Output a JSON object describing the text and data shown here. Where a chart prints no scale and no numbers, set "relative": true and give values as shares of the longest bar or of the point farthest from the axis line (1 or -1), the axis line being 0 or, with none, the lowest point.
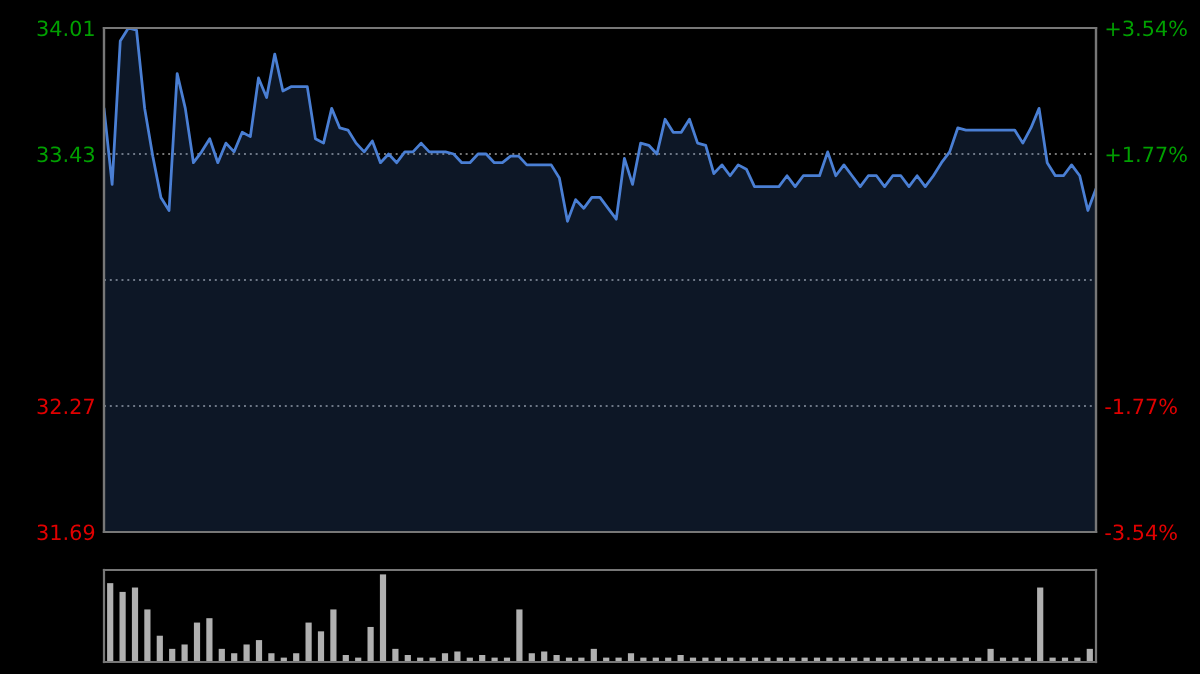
{
  "chart_data": [
    {
      "type": "area",
      "categories": [
        null,
        null,
        null,
        null,
        null,
        null,
        null,
        null,
        null,
        null,
        null,
        null,
        null,
        null,
        null,
        null,
        null,
        null,
        null,
        null,
        null,
        null,
        null,
        null,
        null,
        null,
        null,
        null,
        null,
        null,
        null,
        null,
        null,
        null,
        null,
        null,
        null,
        null,
        null,
        null,
        null,
        null,
        null,
        null,
        null,
        null,
        null,
        null,
        null,
        null,
        null,
        null,
        null,
        null,
        null,
        null,
        null,
        null,
        null,
        null,
        null,
        null,
        null,
        null,
        null,
        null,
        null,
        null,
        null,
        null,
        null,
        null,
        null,
        null,
        null,
        null,
        null,
        null,
        null,
        null,
        null,
        null,
        null,
        null,
        null,
        null,
        null,
        null,
        null,
        null,
        null,
        null,
        null,
        null,
        null,
        null,
        null,
        null,
        null,
        null,
        null,
        null,
        null,
        null,
        null,
        null,
        null,
        null,
        null,
        null,
        null,
        null,
        null,
        null,
        null,
        null,
        null,
        null,
        null,
        null,
        null,
        null,
        null
      ],
      "series": [
        {
          "color": "#4a7fd4",
          "values": [
            33.64,
            33.29,
            33.95,
            34.01,
            34.0,
            33.64,
            33.42,
            33.23,
            33.17,
            33.8,
            33.64,
            33.39,
            33.44,
            33.5,
            33.39,
            33.48,
            33.44,
            33.53,
            33.51,
            33.78,
            33.69,
            33.89,
            33.72,
            33.74,
            33.74,
            33.74,
            33.5,
            33.48,
            33.64,
            33.55,
            33.54,
            33.48,
            33.44,
            33.49,
            33.39,
            33.43,
            33.39,
            33.44,
            33.44,
            33.48,
            33.44,
            33.44,
            33.44,
            33.43,
            33.39,
            33.39,
            33.43,
            33.43,
            33.39,
            33.39,
            33.42,
            33.42,
            33.38,
            33.38,
            33.38,
            33.38,
            33.32,
            33.12,
            33.22,
            33.18,
            33.23,
            33.23,
            33.18,
            33.13,
            33.41,
            33.29,
            33.48,
            33.47,
            33.43,
            33.59,
            33.53,
            33.53,
            33.59,
            33.48,
            33.47,
            33.34,
            33.38,
            33.33,
            33.38,
            33.36,
            33.28,
            33.28,
            33.28,
            33.28,
            33.33,
            33.28,
            33.33,
            33.33,
            33.33,
            33.44,
            33.33,
            33.38,
            33.33,
            33.28,
            33.33,
            33.33,
            33.28,
            33.33,
            33.33,
            33.28,
            33.33,
            33.28,
            33.33,
            33.39,
            33.44,
            33.55,
            33.54,
            33.54,
            33.54,
            33.54,
            33.54,
            33.54,
            33.54,
            33.48,
            33.55,
            33.64,
            33.39,
            33.33,
            33.33,
            33.38,
            33.33,
            33.17,
            33.27
          ]
        }
      ],
      "ylim": [
        31.69,
        34.01
      ],
      "yticks": [
        31.69,
        32.27,
        {
          "value": 32.85,
          "label": null
        },
        33.43,
        34.01
      ],
      "y2lim": [
        -3.54,
        3.54
      ],
      "y2ticks": [
        {
          "value": -3.54,
          "label": "-3.54%"
        },
        {
          "value": -1.77,
          "label": "-1.77%"
        },
        {
          "value": 1.77,
          "label": "+1.77%"
        },
        {
          "value": 3.54,
          "label": "+3.54%"
        }
      ],
      "grid": "y"
    },
    {
      "type": "bar",
      "relative": true,
      "color": "#b0b0b0",
      "categories": [
        null,
        null,
        null,
        null,
        null,
        null,
        null,
        null,
        null,
        null,
        null,
        null,
        null,
        null,
        null,
        null,
        null,
        null,
        null,
        null,
        null,
        null,
        null,
        null,
        null,
        null,
        null,
        null,
        null,
        null,
        null,
        null,
        null,
        null,
        null,
        null,
        null,
        null,
        null,
        null,
        null,
        null,
        null,
        null,
        null,
        null,
        null,
        null,
        null,
        null,
        null,
        null,
        null,
        null,
        null,
        null,
        null,
        null,
        null,
        null,
        null,
        null,
        null,
        null,
        null,
        null,
        null,
        null,
        null,
        null,
        null,
        null,
        null,
        null,
        null,
        null,
        null,
        null,
        null,
        null
      ],
      "values": [
        0.9,
        0.8,
        0.85,
        0.6,
        0.3,
        0.15,
        0.2,
        0.45,
        0.5,
        0.15,
        0.1,
        0.2,
        0.25,
        0.1,
        0.05,
        0.1,
        0.45,
        0.35,
        0.6,
        0.08,
        0.05,
        0.4,
        1,
        0.15,
        0.08,
        0.05,
        0.05,
        0.1,
        0.12,
        0.05,
        0.08,
        0.05,
        0.05,
        0.6,
        0.1,
        0.12,
        0.08,
        0.05,
        0.05,
        0.15,
        0.05,
        0.05,
        0.1,
        0.05,
        0.05,
        0.05,
        0.08,
        0.05,
        0.05,
        0.05,
        0.05,
        0.05,
        0.05,
        0.05,
        0.05,
        0.05,
        0.05,
        0.05,
        0.05,
        0.05,
        0.05,
        0.05,
        0.05,
        0.05,
        0.05,
        0.05,
        0.05,
        0.05,
        0.05,
        0.05,
        0.05,
        0.15,
        0.05,
        0.05,
        0.05,
        0.85,
        0.05,
        0.05,
        0.05,
        0.15
      ]
    }
  ]
}
